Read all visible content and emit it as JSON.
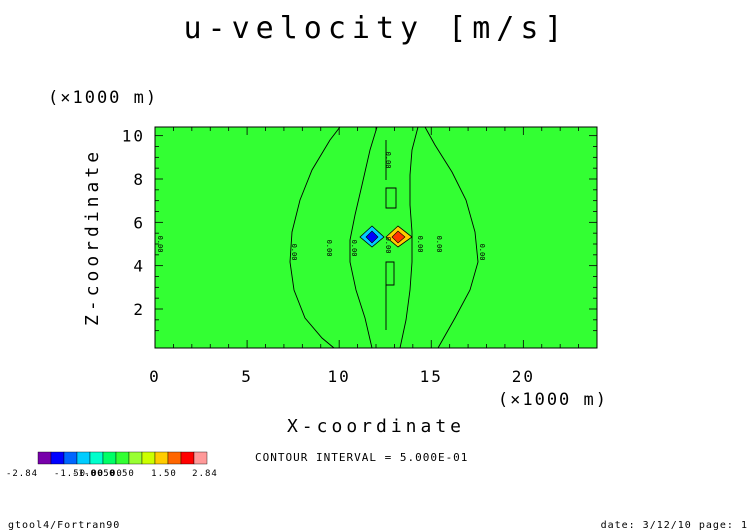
{
  "chart_data": {
    "type": "heatmap",
    "title": "u-velocity [m/s]",
    "xlabel": "X-coordinate",
    "ylabel": "Z-coordinate",
    "x_unit": "(×1000 m)",
    "y_unit": "(×1000 m)",
    "xlim": [
      0,
      24
    ],
    "ylim": [
      0.2,
      10.4
    ],
    "x_ticks": [
      "0",
      "5",
      "10",
      "15",
      "20"
    ],
    "y_ticks": [
      "2",
      "4",
      "6",
      "8",
      "10"
    ],
    "background_color": "#33ff33",
    "contour_label": "0.00",
    "contour_interval_text": "CONTOUR INTERVAL = 5.000E-01",
    "colorbar": {
      "colors": [
        "#7700aa",
        "#0000ff",
        "#0066ff",
        "#00ccff",
        "#00ffcc",
        "#00ff66",
        "#33ff33",
        "#99ff33",
        "#ccff00",
        "#ffcc00",
        "#ff6600",
        "#ff0000",
        "#ff9999"
      ],
      "labels": [
        "-2.84",
        "-1.50",
        "-1.00",
        "-0.50",
        "0.00",
        "0.50",
        "1.50",
        "2.84"
      ]
    },
    "features": [
      {
        "name": "negative-core",
        "x": 11.8,
        "z": 5.2,
        "min": -2.84
      },
      {
        "name": "positive-core",
        "x": 13.2,
        "z": 5.2,
        "max": 2.84
      }
    ]
  },
  "footer": {
    "left": "gtool4/Fortran90",
    "right": "date: 3/12/10 page: 1"
  }
}
